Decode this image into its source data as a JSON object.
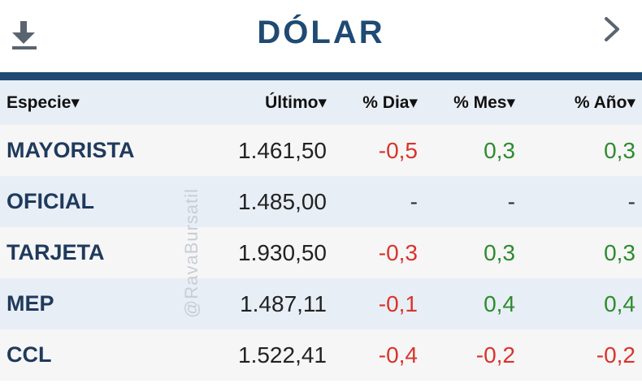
{
  "header": {
    "title": "DÓLAR"
  },
  "table": {
    "columns": [
      "Especie▾",
      "Último▾",
      "% Dia▾",
      "% Mes▾",
      "% Año▾"
    ],
    "rows": [
      {
        "name": "MAYORISTA",
        "last": "1.461,50",
        "day": "-0,5",
        "month": "0,3",
        "year": "0,3"
      },
      {
        "name": "OFICIAL",
        "last": "1.485,00",
        "day": "-",
        "month": "-",
        "year": "-"
      },
      {
        "name": "TARJETA",
        "last": "1.930,50",
        "day": "-0,3",
        "month": "0,3",
        "year": "0,3"
      },
      {
        "name": "MEP",
        "last": "1.487,11",
        "day": "-0,1",
        "month": "0,4",
        "year": "0,4"
      },
      {
        "name": "CCL",
        "last": "1.522,41",
        "day": "-0,4",
        "month": "-0,2",
        "year": "-0,2"
      }
    ]
  },
  "watermark": "@RavaBursatil",
  "icons": {
    "download": "download-icon",
    "next": "chevron-right-icon"
  },
  "colors": {
    "brand": "#1f4a73",
    "negative": "#d9342b",
    "positive": "#2e8b2e"
  }
}
